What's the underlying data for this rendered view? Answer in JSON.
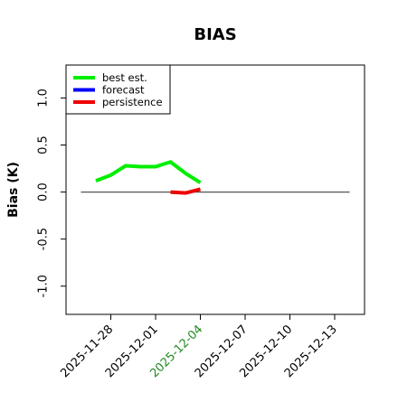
{
  "chart_data": {
    "type": "line",
    "title": "BIAS",
    "xlabel": "",
    "ylabel": "Bias (K)",
    "ylim": [
      -1.3,
      1.35
    ],
    "xlim": [
      "2025-11-25",
      "2025-12-15"
    ],
    "y_ticks": [
      "-1.0",
      "-0.5",
      "0.0",
      "0.5",
      "1.0"
    ],
    "y_tick_values": [
      -1.0,
      -0.5,
      0.0,
      0.5,
      1.0
    ],
    "x_ticks": [
      "2025-11-28",
      "2025-12-01",
      "2025-12-04",
      "2025-12-07",
      "2025-12-10",
      "2025-12-13"
    ],
    "highlighted_x_tick": "2025-12-04",
    "highlight_color": "#228B22",
    "reference_line": {
      "y": 0.0,
      "x_start": "2025-11-26",
      "x_end": "2025-12-14",
      "color": "#555555"
    },
    "legend_position": "top-left",
    "series": [
      {
        "name": "best est.",
        "color": "#00ee00",
        "x": [
          "2025-11-27",
          "2025-11-28",
          "2025-11-29",
          "2025-11-30",
          "2025-12-01",
          "2025-12-02",
          "2025-12-03",
          "2025-12-04"
        ],
        "y": [
          0.12,
          0.18,
          0.28,
          0.27,
          0.27,
          0.32,
          0.2,
          0.1
        ]
      },
      {
        "name": "forecast",
        "color": "#0000ff",
        "x": [],
        "y": []
      },
      {
        "name": "persistence",
        "color": "#ee0000",
        "x": [
          "2025-12-02",
          "2025-12-03",
          "2025-12-04"
        ],
        "y": [
          0.0,
          -0.01,
          0.03
        ]
      }
    ]
  }
}
